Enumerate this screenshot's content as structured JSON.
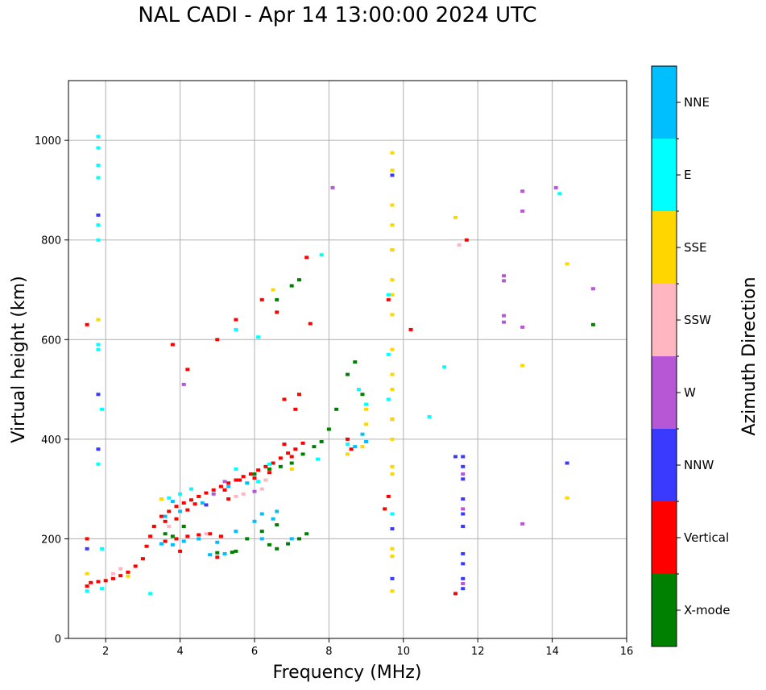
{
  "chart_data": {
    "type": "scatter",
    "title": "NAL CADI - Apr 14 13:00:00 2024 UTC",
    "xlabel": "Frequency (MHz)",
    "ylabel": "Virtual height (km)",
    "xlim": [
      1,
      16
    ],
    "ylim": [
      0,
      1120
    ],
    "xticks": [
      2,
      4,
      6,
      8,
      10,
      12,
      14,
      16
    ],
    "yticks": [
      0,
      200,
      400,
      600,
      800,
      1000
    ],
    "grid": true,
    "colorbar": {
      "title": "Azimuth Direction",
      "categories": [
        {
          "name": "X-mode",
          "color": "#008000"
        },
        {
          "name": "Vertical",
          "color": "#ff0000"
        },
        {
          "name": "NNW",
          "color": "#3a3aff"
        },
        {
          "name": "W",
          "color": "#b657d6"
        },
        {
          "name": "SSW",
          "color": "#ffb6c1"
        },
        {
          "name": "SSE",
          "color": "#ffd700"
        },
        {
          "name": "E",
          "color": "#00ffff"
        },
        {
          "name": "NNE",
          "color": "#00bfff"
        }
      ]
    },
    "series": [
      {
        "name": "Vertical",
        "points": [
          [
            1.5,
            105
          ],
          [
            1.6,
            112
          ],
          [
            1.8,
            114
          ],
          [
            2.0,
            116
          ],
          [
            2.2,
            120
          ],
          [
            2.4,
            126
          ],
          [
            2.6,
            133
          ],
          [
            2.8,
            145
          ],
          [
            3.0,
            160
          ],
          [
            3.1,
            185
          ],
          [
            3.2,
            205
          ],
          [
            3.3,
            225
          ],
          [
            3.5,
            245
          ],
          [
            3.7,
            255
          ],
          [
            3.9,
            265
          ],
          [
            4.1,
            272
          ],
          [
            4.3,
            278
          ],
          [
            4.5,
            285
          ],
          [
            4.7,
            292
          ],
          [
            4.9,
            298
          ],
          [
            5.1,
            305
          ],
          [
            5.3,
            312
          ],
          [
            5.5,
            318
          ],
          [
            5.7,
            325
          ],
          [
            5.9,
            330
          ],
          [
            6.1,
            338
          ],
          [
            6.3,
            345
          ],
          [
            6.5,
            352
          ],
          [
            6.7,
            362
          ],
          [
            6.9,
            372
          ],
          [
            7.1,
            380
          ],
          [
            7.3,
            392
          ],
          [
            3.6,
            195
          ],
          [
            3.9,
            200
          ],
          [
            4.2,
            205
          ],
          [
            4.5,
            208
          ],
          [
            4.8,
            210
          ],
          [
            5.1,
            205
          ],
          [
            3.6,
            235
          ],
          [
            3.9,
            240
          ],
          [
            4.2,
            258
          ],
          [
            5.2,
            298
          ],
          [
            5.6,
            318
          ],
          [
            6.0,
            322
          ],
          [
            6.4,
            333
          ],
          [
            7.0,
            365
          ],
          [
            7.2,
            490
          ],
          [
            6.8,
            480
          ],
          [
            7.1,
            460
          ],
          [
            8.5,
            400
          ],
          [
            8.6,
            380
          ],
          [
            9.5,
            260
          ],
          [
            9.6,
            285
          ],
          [
            9.6,
            680
          ],
          [
            10.2,
            620
          ],
          [
            11.4,
            90
          ],
          [
            11.7,
            800
          ],
          [
            7.4,
            765
          ],
          [
            7.5,
            632
          ],
          [
            1.5,
            630
          ],
          [
            1.5,
            200
          ],
          [
            4.2,
            540
          ],
          [
            3.8,
            590
          ],
          [
            5.0,
            600
          ],
          [
            5.5,
            640
          ],
          [
            6.2,
            680
          ],
          [
            6.6,
            655
          ],
          [
            4.0,
            175
          ],
          [
            5.0,
            163
          ],
          [
            4.4,
            270
          ],
          [
            5.3,
            280
          ],
          [
            6.8,
            390
          ]
        ]
      },
      {
        "name": "X-mode",
        "points": [
          [
            3.8,
            205
          ],
          [
            4.1,
            225
          ],
          [
            5.0,
            172
          ],
          [
            5.4,
            173
          ],
          [
            5.8,
            200
          ],
          [
            6.2,
            215
          ],
          [
            6.6,
            228
          ],
          [
            6.9,
            190
          ],
          [
            7.2,
            200
          ],
          [
            7.4,
            210
          ],
          [
            6.6,
            180
          ],
          [
            6.0,
            330
          ],
          [
            6.4,
            340
          ],
          [
            6.7,
            345
          ],
          [
            7.0,
            352
          ],
          [
            7.3,
            370
          ],
          [
            7.6,
            385
          ],
          [
            7.8,
            395
          ],
          [
            8.0,
            420
          ],
          [
            8.2,
            460
          ],
          [
            8.5,
            530
          ],
          [
            8.7,
            555
          ],
          [
            8.9,
            490
          ],
          [
            7.0,
            708
          ],
          [
            7.2,
            720
          ],
          [
            6.6,
            680
          ],
          [
            3.6,
            210
          ],
          [
            15.1,
            630
          ],
          [
            5.5,
            175
          ],
          [
            6.4,
            188
          ]
        ]
      },
      {
        "name": "NNW",
        "points": [
          [
            11.6,
            100
          ],
          [
            11.6,
            120
          ],
          [
            11.6,
            150
          ],
          [
            11.6,
            170
          ],
          [
            11.6,
            225
          ],
          [
            11.6,
            250
          ],
          [
            11.6,
            280
          ],
          [
            11.6,
            320
          ],
          [
            11.6,
            345
          ],
          [
            11.6,
            365
          ],
          [
            11.4,
            365
          ],
          [
            9.7,
            120
          ],
          [
            9.7,
            220
          ],
          [
            9.7,
            440
          ],
          [
            9.7,
            780
          ],
          [
            9.7,
            930
          ],
          [
            1.8,
            850
          ],
          [
            1.8,
            490
          ],
          [
            1.8,
            380
          ],
          [
            4.7,
            268
          ],
          [
            14.4,
            352
          ],
          [
            1.5,
            180
          ]
        ]
      },
      {
        "name": "W",
        "points": [
          [
            11.6,
            110
          ],
          [
            11.6,
            260
          ],
          [
            11.6,
            330
          ],
          [
            12.7,
            635
          ],
          [
            12.7,
            648
          ],
          [
            12.7,
            718
          ],
          [
            12.7,
            728
          ],
          [
            13.2,
            625
          ],
          [
            13.2,
            858
          ],
          [
            13.2,
            898
          ],
          [
            13.2,
            230
          ],
          [
            14.1,
            905
          ],
          [
            15.1,
            702
          ],
          [
            8.1,
            905
          ],
          [
            4.1,
            510
          ],
          [
            6.0,
            295
          ],
          [
            5.2,
            315
          ],
          [
            4.9,
            290
          ]
        ]
      },
      {
        "name": "SSW",
        "points": [
          [
            2.2,
            130
          ],
          [
            2.4,
            140
          ],
          [
            5.7,
            290
          ],
          [
            6.2,
            300
          ],
          [
            6.3,
            318
          ],
          [
            5.5,
            285
          ],
          [
            11.5,
            790
          ],
          [
            4.7,
            210
          ],
          [
            3.7,
            225
          ]
        ]
      },
      {
        "name": "SSE",
        "points": [
          [
            1.5,
            130
          ],
          [
            2.6,
            125
          ],
          [
            9.7,
            95
          ],
          [
            9.7,
            165
          ],
          [
            9.7,
            180
          ],
          [
            9.7,
            330
          ],
          [
            9.7,
            345
          ],
          [
            9.7,
            400
          ],
          [
            9.7,
            440
          ],
          [
            9.7,
            500
          ],
          [
            9.7,
            530
          ],
          [
            9.7,
            580
          ],
          [
            9.7,
            650
          ],
          [
            9.7,
            690
          ],
          [
            9.7,
            720
          ],
          [
            9.7,
            780
          ],
          [
            9.7,
            830
          ],
          [
            9.7,
            870
          ],
          [
            9.7,
            940
          ],
          [
            9.7,
            975
          ],
          [
            8.9,
            385
          ],
          [
            9.0,
            430
          ],
          [
            9.0,
            460
          ],
          [
            8.5,
            370
          ],
          [
            7.0,
            340
          ],
          [
            6.5,
            700
          ],
          [
            11.4,
            845
          ],
          [
            13.2,
            548
          ],
          [
            14.4,
            752
          ],
          [
            14.4,
            282
          ],
          [
            1.8,
            640
          ],
          [
            3.5,
            280
          ]
        ]
      },
      {
        "name": "E",
        "points": [
          [
            1.5,
            95
          ],
          [
            1.8,
            1008
          ],
          [
            1.8,
            985
          ],
          [
            1.8,
            950
          ],
          [
            1.8,
            925
          ],
          [
            1.8,
            830
          ],
          [
            1.8,
            800
          ],
          [
            1.8,
            590
          ],
          [
            1.8,
            580
          ],
          [
            1.9,
            460
          ],
          [
            1.8,
            350
          ],
          [
            1.9,
            180
          ],
          [
            1.9,
            100
          ],
          [
            3.2,
            90
          ],
          [
            3.7,
            282
          ],
          [
            4.0,
            290
          ],
          [
            4.3,
            300
          ],
          [
            5.5,
            340
          ],
          [
            6.1,
            315
          ],
          [
            6.4,
            350
          ],
          [
            7.7,
            360
          ],
          [
            7.8,
            770
          ],
          [
            8.5,
            390
          ],
          [
            8.8,
            500
          ],
          [
            9.0,
            470
          ],
          [
            9.6,
            480
          ],
          [
            9.6,
            690
          ],
          [
            9.7,
            250
          ],
          [
            10.7,
            445
          ],
          [
            11.1,
            545
          ],
          [
            14.2,
            893
          ],
          [
            6.1,
            605
          ],
          [
            5.5,
            620
          ],
          [
            9.6,
            570
          ]
        ]
      },
      {
        "name": "NNE",
        "points": [
          [
            3.5,
            190
          ],
          [
            3.8,
            188
          ],
          [
            4.1,
            195
          ],
          [
            4.5,
            200
          ],
          [
            5.0,
            193
          ],
          [
            5.5,
            215
          ],
          [
            6.0,
            235
          ],
          [
            6.5,
            240
          ],
          [
            6.6,
            255
          ],
          [
            3.6,
            245
          ],
          [
            4.0,
            255
          ],
          [
            4.6,
            272
          ],
          [
            5.3,
            305
          ],
          [
            5.8,
            312
          ],
          [
            6.2,
            250
          ],
          [
            8.7,
            385
          ],
          [
            9.0,
            395
          ],
          [
            8.9,
            410
          ],
          [
            4.8,
            168
          ],
          [
            5.2,
            170
          ],
          [
            6.2,
            200
          ],
          [
            7.0,
            200
          ],
          [
            3.8,
            275
          ]
        ]
      }
    ]
  }
}
